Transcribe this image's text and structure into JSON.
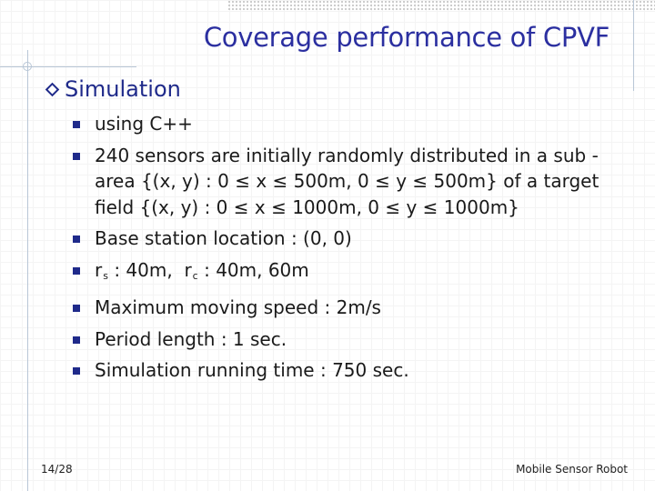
{
  "slide": {
    "title": "Coverage performance of CPVF",
    "heading": "Simulation",
    "bullets": [
      "using C++",
      "240 sensors are initially randomly distributed in a sub -area {(x, y) : 0 ≤ x ≤ 500m, 0 ≤ y ≤ 500m} of a target field {(x, y) : 0 ≤ x ≤ 1000m, 0 ≤ y ≤ 1000m}",
      "Base station location : (0, 0)",
      "Maximum moving speed : 2m/s",
      "Period length : 1 sec.",
      "Simulation running time : 750 sec."
    ],
    "radius_line": {
      "rs_base": "r",
      "rs_sub": "s",
      "rs_value": " : 40m,  ",
      "rc_base": "r",
      "rc_sub": "c",
      "rc_value": " : 40m, 60m"
    },
    "page_number": "14/28",
    "footer_text": "Mobile Sensor Robot"
  },
  "colors": {
    "title": "#2b2fa0",
    "bullet_marker": "#1f2a8a",
    "text": "#1a1a1a",
    "guide_lines": "#b8c6d6"
  },
  "icons": {
    "heading_marker": "diamond-icon",
    "bullet_marker": "square-icon"
  }
}
